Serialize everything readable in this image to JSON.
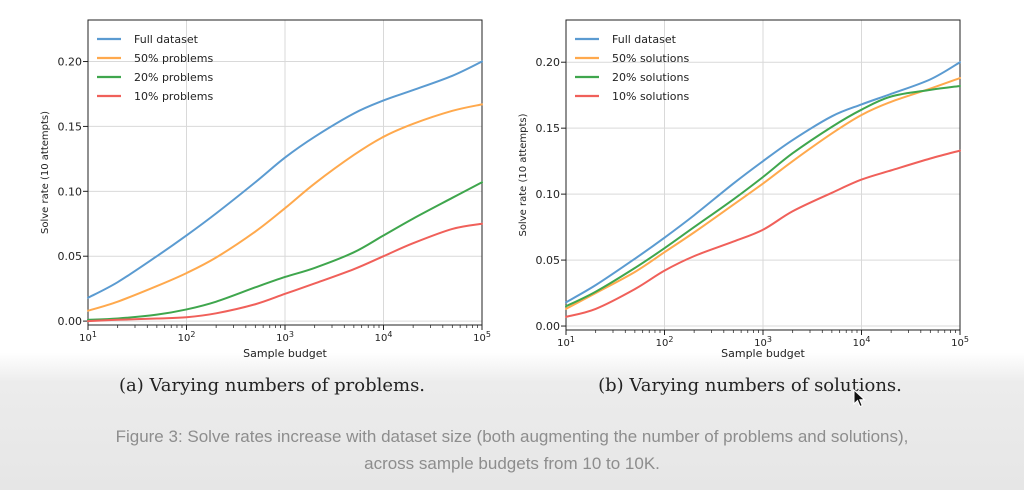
{
  "figure": {
    "caption_line1": "Figure 3: Solve rates increase with dataset size (both augmenting the number of problems and solutions),",
    "caption_line2": "across sample budgets from 10 to 10K."
  },
  "chart_data": [
    {
      "type": "line",
      "subtitle": "(a) Varying numbers of problems.",
      "xlabel": "Sample budget",
      "ylabel": "Solve rate (10 attempts)",
      "xscale": "log",
      "xlim": [
        10,
        100000
      ],
      "ylim": [
        -0.003,
        0.232
      ],
      "xticks": [
        10,
        100,
        1000,
        10000,
        100000
      ],
      "xtick_labels": [
        "10¹",
        "10²",
        "10³",
        "10⁴",
        "10⁵"
      ],
      "yticks": [
        0.0,
        0.05,
        0.1,
        0.15,
        0.2
      ],
      "ytick_labels": [
        "0.00",
        "0.05",
        "0.10",
        "0.15",
        "0.20"
      ],
      "grid": true,
      "legend_position": "top-left",
      "x": [
        10,
        20,
        50,
        100,
        200,
        500,
        1000,
        2000,
        5000,
        10000,
        20000,
        50000,
        100000
      ],
      "series": [
        {
          "name": "Full dataset",
          "color": "#5b9bd1",
          "values": [
            0.018,
            0.03,
            0.05,
            0.066,
            0.083,
            0.107,
            0.126,
            0.142,
            0.16,
            0.17,
            0.178,
            0.189,
            0.2
          ]
        },
        {
          "name": "50% problems",
          "color": "#ffa94d",
          "values": [
            0.008,
            0.015,
            0.027,
            0.037,
            0.049,
            0.069,
            0.087,
            0.106,
            0.128,
            0.142,
            0.152,
            0.162,
            0.167
          ]
        },
        {
          "name": "20% problems",
          "color": "#3fa64d",
          "values": [
            0.001,
            0.002,
            0.005,
            0.009,
            0.015,
            0.026,
            0.034,
            0.041,
            0.053,
            0.066,
            0.079,
            0.095,
            0.107
          ]
        },
        {
          "name": "10% problems",
          "color": "#f0605a",
          "values": [
            0.0,
            0.001,
            0.002,
            0.003,
            0.006,
            0.013,
            0.021,
            0.029,
            0.04,
            0.05,
            0.06,
            0.071,
            0.075
          ]
        }
      ]
    },
    {
      "type": "line",
      "subtitle": "(b) Varying numbers of solutions.",
      "xlabel": "Sample budget",
      "ylabel": "Solve rate (10 attempts)",
      "xscale": "log",
      "xlim": [
        10,
        100000
      ],
      "ylim": [
        -0.003,
        0.232
      ],
      "xticks": [
        10,
        100,
        1000,
        10000,
        100000
      ],
      "xtick_labels": [
        "10¹",
        "10²",
        "10³",
        "10⁴",
        "10⁵"
      ],
      "yticks": [
        0.0,
        0.05,
        0.1,
        0.15,
        0.2
      ],
      "ytick_labels": [
        "0.00",
        "0.05",
        "0.10",
        "0.15",
        "0.20"
      ],
      "grid": true,
      "legend_position": "top-left",
      "x": [
        10,
        20,
        50,
        100,
        200,
        500,
        1000,
        2000,
        5000,
        10000,
        20000,
        50000,
        100000
      ],
      "series": [
        {
          "name": "Full dataset",
          "color": "#5b9bd1",
          "values": [
            0.018,
            0.031,
            0.051,
            0.067,
            0.084,
            0.108,
            0.125,
            0.141,
            0.159,
            0.168,
            0.176,
            0.187,
            0.2
          ]
        },
        {
          "name": "50% solutions",
          "color": "#ffa94d",
          "values": [
            0.013,
            0.025,
            0.041,
            0.056,
            0.071,
            0.092,
            0.108,
            0.125,
            0.146,
            0.16,
            0.17,
            0.18,
            0.188
          ]
        },
        {
          "name": "20% solutions",
          "color": "#3fa64d",
          "values": [
            0.015,
            0.026,
            0.044,
            0.059,
            0.075,
            0.096,
            0.113,
            0.131,
            0.151,
            0.164,
            0.174,
            0.179,
            0.182
          ]
        },
        {
          "name": "10% solutions",
          "color": "#f0605a",
          "values": [
            0.007,
            0.013,
            0.028,
            0.042,
            0.053,
            0.064,
            0.073,
            0.087,
            0.101,
            0.111,
            0.118,
            0.127,
            0.133
          ]
        }
      ]
    }
  ]
}
